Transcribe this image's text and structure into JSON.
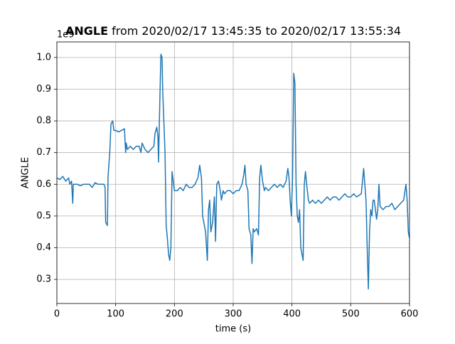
{
  "chart_data": {
    "type": "line",
    "title_bold": "ANGLE",
    "title": "from 2020/02/17 13:45:35 to 2020/02/17 13:55:34",
    "x_label": "time (s)",
    "y_label": "ANGLE",
    "y_offset_label": "1e9",
    "x": [
      0,
      5,
      10,
      15,
      20,
      22,
      25,
      27,
      28,
      35,
      40,
      45,
      50,
      55,
      60,
      65,
      70,
      75,
      80,
      82,
      83,
      86,
      87,
      88,
      90,
      92,
      95,
      97,
      100,
      105,
      110,
      115,
      117,
      118,
      120,
      125,
      130,
      135,
      140,
      143,
      145,
      150,
      155,
      160,
      165,
      167,
      170,
      172,
      173,
      175,
      177,
      179,
      180,
      182,
      184,
      186,
      188,
      190,
      192,
      194,
      196,
      200,
      205,
      210,
      215,
      220,
      225,
      230,
      235,
      240,
      243,
      246,
      248,
      250,
      253,
      256,
      258,
      260,
      262,
      265,
      268,
      270,
      272,
      275,
      278,
      280,
      283,
      285,
      290,
      295,
      300,
      305,
      310,
      315,
      318,
      320,
      322,
      325,
      327,
      330,
      332,
      334,
      336,
      340,
      343,
      345,
      347,
      350,
      353,
      355,
      360,
      365,
      370,
      375,
      380,
      385,
      390,
      393,
      395,
      397,
      399,
      401,
      403,
      405,
      407,
      409,
      411,
      413,
      415,
      417,
      419,
      421,
      423,
      425,
      428,
      430,
      435,
      440,
      445,
      450,
      455,
      460,
      465,
      470,
      475,
      480,
      485,
      490,
      495,
      500,
      505,
      510,
      518,
      522,
      524,
      526,
      528,
      530,
      532,
      534,
      536,
      538,
      540,
      542,
      544,
      546,
      548,
      550,
      555,
      560,
      565,
      570,
      575,
      580,
      585,
      590,
      594,
      596,
      598,
      600
    ],
    "series": [
      {
        "name": "ANGLE",
        "color": "#1f77b4",
        "values": [
          0.62,
          0.615,
          0.625,
          0.61,
          0.62,
          0.6,
          0.61,
          0.54,
          0.6,
          0.6,
          0.595,
          0.6,
          0.6,
          0.6,
          0.59,
          0.605,
          0.6,
          0.6,
          0.6,
          0.59,
          0.48,
          0.47,
          0.62,
          0.65,
          0.7,
          0.79,
          0.8,
          0.77,
          0.77,
          0.765,
          0.77,
          0.775,
          0.7,
          0.73,
          0.71,
          0.72,
          0.71,
          0.72,
          0.72,
          0.7,
          0.73,
          0.71,
          0.7,
          0.71,
          0.72,
          0.76,
          0.78,
          0.75,
          0.67,
          0.85,
          1.01,
          1.0,
          0.9,
          0.8,
          0.7,
          0.47,
          0.43,
          0.38,
          0.36,
          0.4,
          0.64,
          0.58,
          0.58,
          0.59,
          0.58,
          0.6,
          0.59,
          0.59,
          0.6,
          0.62,
          0.66,
          0.62,
          0.5,
          0.48,
          0.45,
          0.36,
          0.52,
          0.55,
          0.45,
          0.48,
          0.56,
          0.42,
          0.6,
          0.61,
          0.58,
          0.55,
          0.58,
          0.57,
          0.58,
          0.58,
          0.57,
          0.58,
          0.58,
          0.6,
          0.63,
          0.66,
          0.6,
          0.58,
          0.46,
          0.44,
          0.35,
          0.46,
          0.45,
          0.46,
          0.44,
          0.62,
          0.66,
          0.61,
          0.58,
          0.59,
          0.58,
          0.59,
          0.6,
          0.59,
          0.6,
          0.59,
          0.61,
          0.65,
          0.62,
          0.55,
          0.5,
          0.62,
          0.95,
          0.92,
          0.6,
          0.5,
          0.48,
          0.52,
          0.4,
          0.38,
          0.36,
          0.6,
          0.64,
          0.6,
          0.55,
          0.54,
          0.55,
          0.54,
          0.55,
          0.54,
          0.55,
          0.56,
          0.55,
          0.56,
          0.56,
          0.55,
          0.56,
          0.57,
          0.56,
          0.56,
          0.57,
          0.56,
          0.57,
          0.65,
          0.6,
          0.55,
          0.4,
          0.27,
          0.45,
          0.52,
          0.5,
          0.55,
          0.55,
          0.52,
          0.49,
          0.52,
          0.6,
          0.53,
          0.52,
          0.53,
          0.53,
          0.54,
          0.52,
          0.53,
          0.54,
          0.55,
          0.6,
          0.55,
          0.45,
          0.43
        ]
      }
    ],
    "xlim": [
      0,
      600
    ],
    "xticks": [
      0,
      100,
      200,
      300,
      400,
      500,
      600
    ],
    "ylim": [
      0.224,
      1.049
    ],
    "yticks": [
      0.3,
      0.4,
      0.5,
      0.6,
      0.7,
      0.8,
      0.9,
      {
        "value": 1,
        "label": "1.0"
      }
    ],
    "grid": true
  }
}
